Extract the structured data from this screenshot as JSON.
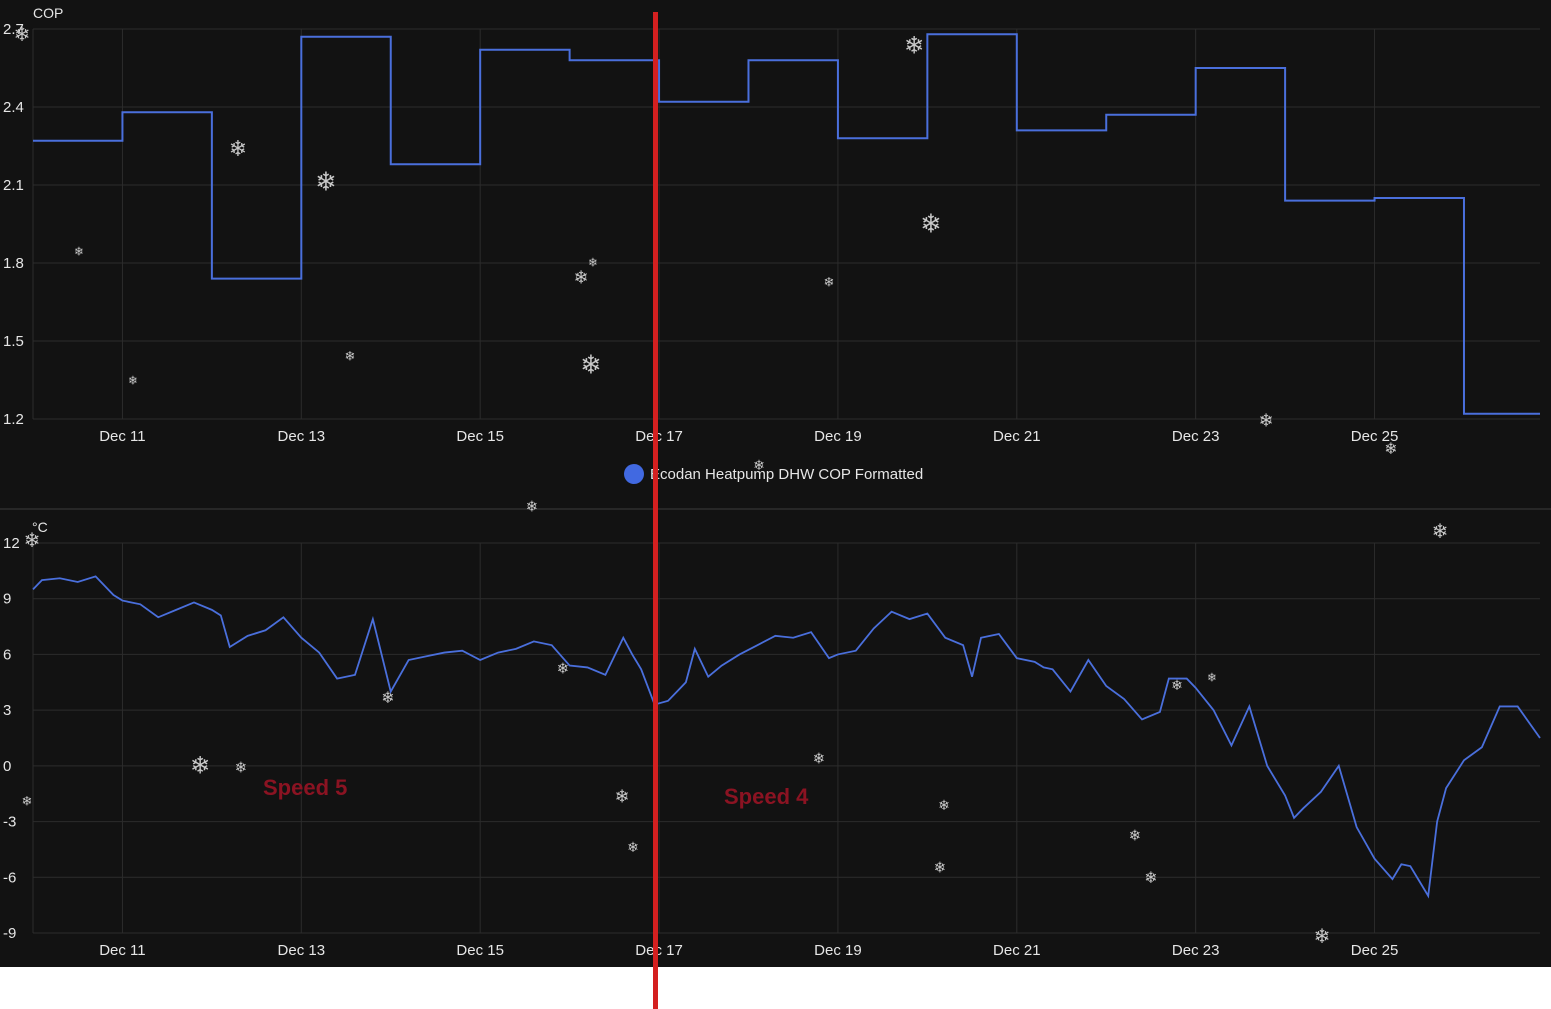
{
  "colors": {
    "background": "#121212",
    "grid": "#2c2c2c",
    "series": "#4a6fdc",
    "legend_dot": "#4169e1",
    "divider": "#d42020",
    "annotation": "#8b1322",
    "text": "#e6e6e6"
  },
  "chart_data": [
    {
      "type": "line",
      "step": true,
      "ylabel": "COP",
      "ylim": [
        1.2,
        2.7
      ],
      "yticks": [
        "2.7",
        "2.4",
        "2.1",
        "1.8",
        "1.5",
        "1.2"
      ],
      "xlim_days": [
        10.0,
        26.85
      ],
      "xticks": [
        "Dec 11",
        "Dec 13",
        "Dec 15",
        "Dec 17",
        "Dec 19",
        "Dec 21",
        "Dec 23",
        "Dec 25"
      ],
      "grid": true,
      "legend": "bottom-center",
      "series": [
        {
          "name": "Ecodan Heatpump DHW COP Formatted",
          "x": [
            10.0,
            11.0,
            12.0,
            13.0,
            14.0,
            15.0,
            16.0,
            17.0,
            18.0,
            19.0,
            20.0,
            21.0,
            22.0,
            23.0,
            24.0,
            25.0,
            26.0,
            26.85
          ],
          "values": [
            2.27,
            2.38,
            1.74,
            2.67,
            2.18,
            2.62,
            2.58,
            2.42,
            2.58,
            2.28,
            2.68,
            2.31,
            2.37,
            2.55,
            2.04,
            2.05,
            1.22,
            1.22
          ]
        }
      ]
    },
    {
      "type": "line",
      "ylabel": "°C",
      "ylim": [
        -9,
        12
      ],
      "yticks": [
        "12",
        "9",
        "6",
        "3",
        "0",
        "-3",
        "-6",
        "-9"
      ],
      "xlim_days": [
        10.0,
        26.85
      ],
      "xticks": [
        "Dec 11",
        "Dec 13",
        "Dec 15",
        "Dec 17",
        "Dec 19",
        "Dec 21",
        "Dec 23",
        "Dec 25"
      ],
      "grid": true,
      "series": [
        {
          "x": [
            10.0,
            10.1,
            10.3,
            10.5,
            10.7,
            10.9,
            11.0,
            11.2,
            11.4,
            11.6,
            11.8,
            12.0,
            12.1,
            12.2,
            12.4,
            12.6,
            12.8,
            13.0,
            13.2,
            13.4,
            13.6,
            13.8,
            14.0,
            14.2,
            14.4,
            14.6,
            14.8,
            15.0,
            15.2,
            15.4,
            15.6,
            15.8,
            16.0,
            16.2,
            16.4,
            16.6,
            16.7,
            16.8,
            16.95,
            17.1,
            17.2,
            17.3,
            17.4,
            17.55,
            17.7,
            17.9,
            18.1,
            18.3,
            18.5,
            18.7,
            18.9,
            19.0,
            19.2,
            19.4,
            19.6,
            19.8,
            20.0,
            20.2,
            20.4,
            20.5,
            20.6,
            20.8,
            21.0,
            21.2,
            21.3,
            21.4,
            21.6,
            21.8,
            22.0,
            22.2,
            22.4,
            22.6,
            22.7,
            22.9,
            23.0,
            23.2,
            23.4,
            23.6,
            23.8,
            24.0,
            24.1,
            24.2,
            24.4,
            24.6,
            24.8,
            25.0,
            25.2,
            25.3,
            25.4,
            25.5,
            25.6,
            25.7,
            25.8,
            26.0,
            26.2,
            26.4,
            26.6,
            26.85
          ],
          "values": [
            9.5,
            10.0,
            10.1,
            9.9,
            10.2,
            9.2,
            8.9,
            8.7,
            8.0,
            8.4,
            8.8,
            8.4,
            8.1,
            6.4,
            7.0,
            7.3,
            8.0,
            6.9,
            6.1,
            4.7,
            4.9,
            7.9,
            4.0,
            5.7,
            5.9,
            6.1,
            6.2,
            5.7,
            6.1,
            6.3,
            6.7,
            6.5,
            5.4,
            5.3,
            4.9,
            6.9,
            6.0,
            5.2,
            3.3,
            3.5,
            4.0,
            4.5,
            6.3,
            4.8,
            5.4,
            6.0,
            6.5,
            7.0,
            6.9,
            7.2,
            5.8,
            6.0,
            6.2,
            7.4,
            8.3,
            7.9,
            8.2,
            6.9,
            6.5,
            4.8,
            6.9,
            7.1,
            5.8,
            5.6,
            5.3,
            5.2,
            4.0,
            5.7,
            4.3,
            3.6,
            2.5,
            2.9,
            4.7,
            4.7,
            4.2,
            3.0,
            1.1,
            3.2,
            0.0,
            -1.6,
            -2.8,
            -2.3,
            -1.4,
            0.0,
            -3.3,
            -5.0,
            -6.1,
            -5.3,
            -5.4,
            -6.2,
            -7.0,
            -3.0,
            -1.2,
            0.3,
            1.0,
            3.2,
            3.2,
            1.5
          ]
        }
      ]
    }
  ],
  "annotations": [
    "Speed 5",
    "Speed 4"
  ]
}
